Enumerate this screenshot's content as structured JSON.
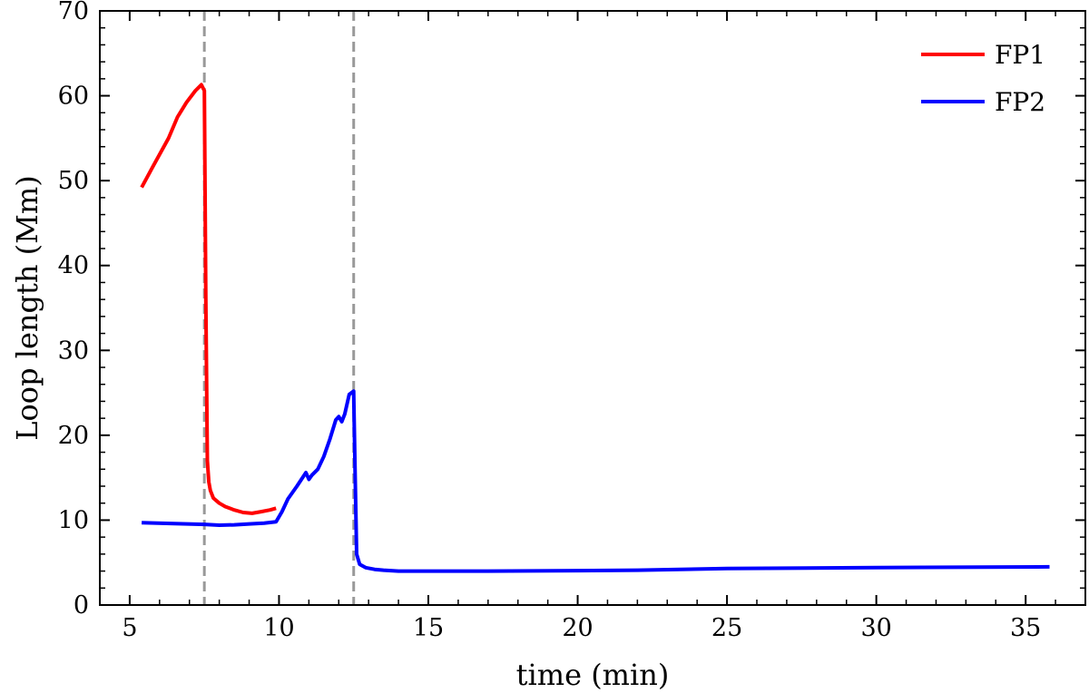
{
  "chart_data": {
    "type": "line",
    "xlabel": "time (min)",
    "ylabel": "Loop length (Mm)",
    "xlim": [
      4,
      37
    ],
    "ylim": [
      0,
      70
    ],
    "x_ticks": [
      5,
      10,
      15,
      20,
      25,
      30,
      35
    ],
    "y_ticks": [
      0,
      10,
      20,
      30,
      40,
      50,
      60,
      70
    ],
    "x_tick_labels": [
      "5",
      "10",
      "15",
      "20",
      "25",
      "30",
      "35"
    ],
    "y_tick_labels": [
      "0",
      "10",
      "20",
      "30",
      "40",
      "50",
      "60",
      "70"
    ],
    "minor_x_step": 1,
    "minor_y_step": 2,
    "grid": false,
    "legend_position": "top-right",
    "vlines": [
      {
        "x": 7.5,
        "color": "#999999",
        "style": "dashed"
      },
      {
        "x": 12.5,
        "color": "#999999",
        "style": "dashed"
      }
    ],
    "series": [
      {
        "name": "FP1",
        "color": "#ff0000",
        "x": [
          5.4,
          5.8,
          6.3,
          6.6,
          6.9,
          7.2,
          7.4,
          7.5,
          7.55,
          7.6,
          7.65,
          7.7,
          7.8,
          8.0,
          8.2,
          8.5,
          8.8,
          9.1,
          9.4,
          9.7,
          9.9
        ],
        "y": [
          49.2,
          51.8,
          55.0,
          57.5,
          59.2,
          60.6,
          61.3,
          60.6,
          36.0,
          17.0,
          14.5,
          13.5,
          12.6,
          12.0,
          11.6,
          11.2,
          10.9,
          10.8,
          11.0,
          11.2,
          11.4
        ]
      },
      {
        "name": "FP2",
        "color": "#0000ff",
        "x": [
          5.4,
          6.5,
          7.5,
          8.0,
          8.5,
          9.0,
          9.5,
          9.9,
          10.1,
          10.3,
          10.6,
          10.9,
          11.0,
          11.1,
          11.3,
          11.5,
          11.7,
          11.9,
          12.0,
          12.1,
          12.2,
          12.35,
          12.5,
          12.55,
          12.6,
          12.7,
          12.9,
          13.2,
          13.5,
          14.0,
          17.0,
          20.0,
          22.0,
          25.0,
          30.0,
          35.8
        ],
        "y": [
          9.7,
          9.6,
          9.5,
          9.4,
          9.45,
          9.55,
          9.65,
          9.8,
          11.0,
          12.5,
          14.0,
          15.6,
          14.8,
          15.3,
          16.0,
          17.5,
          19.5,
          21.8,
          22.2,
          21.6,
          22.5,
          24.8,
          25.2,
          15.0,
          6.0,
          4.8,
          4.4,
          4.2,
          4.1,
          4.0,
          4.0,
          4.05,
          4.1,
          4.3,
          4.4,
          4.5
        ]
      }
    ]
  }
}
